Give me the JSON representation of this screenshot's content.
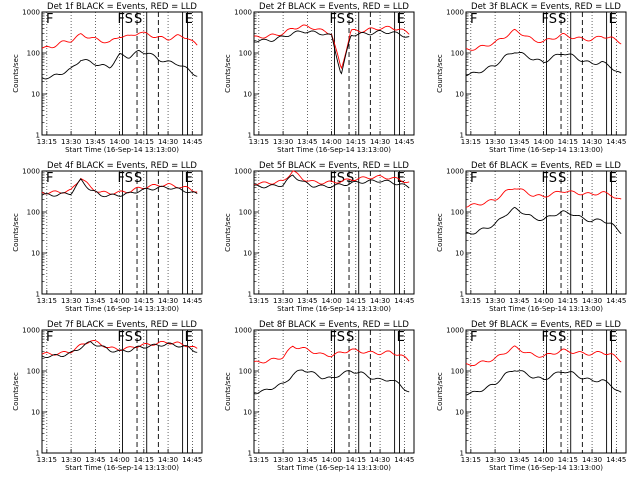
{
  "x_tick_labels": [
    "13:15",
    "13:30",
    "13:45",
    "14:00",
    "14:15",
    "14:30",
    "14:45"
  ],
  "y_tick_labels": [
    "1",
    "10",
    "100",
    "1000"
  ],
  "xlabel": "Start Time (16-Sep-14 13:13:00)",
  "ylabel": "Counts/sec",
  "line_colors": {
    "events": "#000000",
    "lld": "#ff0000"
  },
  "chart_data": [
    {
      "type": "line",
      "title": "Det 1f BLACK = Events, RED = LLD",
      "xlim": [
        13.2,
        14.85
      ],
      "ylim": [
        1,
        1000
      ],
      "yscale": "log",
      "marker_letters": [
        "F",
        "FS",
        "S",
        "E"
      ],
      "x": [
        13.22,
        13.3,
        13.4,
        13.5,
        13.6,
        13.7,
        13.8,
        13.9,
        14.0,
        14.1,
        14.2,
        14.3,
        14.4,
        14.5,
        14.6,
        14.7,
        14.8
      ],
      "series": [
        {
          "values": [
            130,
            140,
            180,
            200,
            280,
            240,
            200,
            180,
            260,
            250,
            320,
            280,
            240,
            220,
            260,
            240,
            150
          ]
        },
        {
          "values": [
            25,
            26,
            32,
            40,
            70,
            60,
            50,
            45,
            90,
            80,
            110,
            100,
            70,
            60,
            55,
            40,
            28
          ]
        }
      ],
      "solid_lines": [
        14.03,
        14.28,
        14.65,
        14.7
      ],
      "dashed_lines": [
        14.18,
        14.4
      ]
    },
    {
      "type": "line",
      "title": "Det 2f BLACK = Events, RED = LLD",
      "xlim": [
        13.2,
        14.85
      ],
      "ylim": [
        1,
        1000
      ],
      "yscale": "log",
      "marker_letters": [
        "",
        "FS",
        "S",
        "E"
      ],
      "x": [
        13.22,
        13.3,
        13.4,
        13.5,
        13.6,
        13.7,
        13.8,
        13.9,
        14.0,
        14.1,
        14.2,
        14.3,
        14.4,
        14.5,
        14.6,
        14.7,
        14.8
      ],
      "series": [
        {
          "values": [
            240,
            250,
            270,
            300,
            400,
            450,
            420,
            350,
            300,
            40,
            350,
            340,
            380,
            400,
            420,
            380,
            300
          ]
        },
        {
          "values": [
            200,
            200,
            210,
            250,
            300,
            340,
            320,
            300,
            260,
            30,
            280,
            290,
            300,
            330,
            320,
            290,
            240
          ]
        }
      ],
      "solid_lines": [
        14.03,
        14.28,
        14.65,
        14.7
      ],
      "dashed_lines": [
        14.18,
        14.4
      ]
    },
    {
      "type": "line",
      "title": "Det 3f BLACK = Events, RED = LLD",
      "xlim": [
        13.2,
        14.85
      ],
      "ylim": [
        1,
        1000
      ],
      "yscale": "log",
      "marker_letters": [
        "F",
        "FS",
        "S",
        "E"
      ],
      "x": [
        13.22,
        13.3,
        13.4,
        13.5,
        13.6,
        13.7,
        13.8,
        13.9,
        14.0,
        14.1,
        14.2,
        14.3,
        14.4,
        14.5,
        14.6,
        14.7,
        14.8
      ],
      "series": [
        {
          "values": [
            120,
            130,
            150,
            180,
            250,
            350,
            280,
            200,
            190,
            230,
            280,
            240,
            220,
            210,
            260,
            230,
            180
          ]
        },
        {
          "values": [
            30,
            32,
            40,
            50,
            80,
            110,
            90,
            70,
            60,
            80,
            100,
            85,
            65,
            55,
            60,
            45,
            30
          ]
        }
      ],
      "solid_lines": [
        14.03,
        14.28,
        14.65,
        14.7
      ],
      "dashed_lines": [
        14.18,
        14.4
      ]
    },
    {
      "type": "line",
      "title": "Det 4f BLACK = Events, RED = LLD",
      "xlim": [
        13.2,
        14.85
      ],
      "ylim": [
        1,
        1000
      ],
      "yscale": "log",
      "marker_letters": [
        "F",
        "FS",
        "S",
        "E"
      ],
      "x": [
        13.22,
        13.3,
        13.4,
        13.5,
        13.6,
        13.7,
        13.8,
        13.9,
        14.0,
        14.1,
        14.2,
        14.3,
        14.4,
        14.5,
        14.6,
        14.7,
        14.8
      ],
      "series": [
        {
          "values": [
            300,
            300,
            310,
            330,
            700,
            400,
            300,
            290,
            300,
            320,
            380,
            420,
            450,
            460,
            420,
            380,
            320
          ]
        },
        {
          "values": [
            260,
            260,
            270,
            290,
            600,
            350,
            260,
            250,
            260,
            280,
            330,
            360,
            390,
            400,
            360,
            320,
            270
          ]
        }
      ],
      "solid_lines": [
        14.03,
        14.28,
        14.65,
        14.7
      ],
      "dashed_lines": [
        14.18,
        14.4
      ]
    },
    {
      "type": "line",
      "title": "Det 5f BLACK = Events, RED = LLD",
      "xlim": [
        13.2,
        14.85
      ],
      "ylim": [
        1,
        1000
      ],
      "yscale": "log",
      "marker_letters": [
        "",
        "FS",
        "S",
        "E"
      ],
      "x": [
        13.22,
        13.3,
        13.4,
        13.5,
        13.6,
        13.7,
        13.8,
        13.9,
        14.0,
        14.1,
        14.2,
        14.3,
        14.4,
        14.5,
        14.6,
        14.7,
        14.8
      ],
      "series": [
        {
          "values": [
            500,
            500,
            520,
            560,
            1000,
            650,
            540,
            520,
            530,
            560,
            620,
            660,
            700,
            720,
            680,
            620,
            520
          ]
        },
        {
          "values": [
            420,
            420,
            430,
            460,
            800,
            540,
            440,
            420,
            430,
            460,
            500,
            540,
            560,
            580,
            540,
            480,
            400
          ]
        }
      ],
      "solid_lines": [
        14.03,
        14.28,
        14.65,
        14.7
      ],
      "dashed_lines": [
        14.18,
        14.4
      ]
    },
    {
      "type": "line",
      "title": "Det 6f BLACK = Events, RED = LLD",
      "xlim": [
        13.2,
        14.85
      ],
      "ylim": [
        1,
        1000
      ],
      "yscale": "log",
      "marker_letters": [
        "F",
        "FS",
        "S",
        "E"
      ],
      "x": [
        13.22,
        13.3,
        13.4,
        13.5,
        13.6,
        13.7,
        13.8,
        13.9,
        14.0,
        14.1,
        14.2,
        14.3,
        14.4,
        14.5,
        14.6,
        14.7,
        14.8
      ],
      "series": [
        {
          "values": [
            140,
            150,
            170,
            200,
            300,
            400,
            320,
            250,
            240,
            280,
            330,
            300,
            280,
            270,
            300,
            260,
            190
          ]
        },
        {
          "values": [
            30,
            32,
            40,
            50,
            85,
            120,
            95,
            70,
            65,
            85,
            100,
            90,
            70,
            60,
            65,
            50,
            32
          ]
        }
      ],
      "solid_lines": [
        14.03,
        14.28,
        14.65,
        14.7
      ],
      "dashed_lines": [
        14.18,
        14.4
      ]
    },
    {
      "type": "line",
      "title": "Det 7f BLACK = Events, RED = LLD",
      "xlim": [
        13.2,
        14.85
      ],
      "ylim": [
        1,
        1000
      ],
      "yscale": "log",
      "marker_letters": [
        "F",
        "FS",
        "S",
        "E"
      ],
      "x": [
        13.22,
        13.3,
        13.4,
        13.5,
        13.6,
        13.7,
        13.8,
        13.9,
        14.0,
        14.1,
        14.2,
        14.3,
        14.4,
        14.5,
        14.6,
        14.7,
        14.8
      ],
      "series": [
        {
          "values": [
            260,
            260,
            270,
            300,
            420,
            560,
            460,
            360,
            340,
            360,
            420,
            440,
            480,
            500,
            470,
            420,
            340
          ]
        },
        {
          "values": [
            230,
            230,
            240,
            270,
            380,
            500,
            410,
            320,
            300,
            320,
            380,
            400,
            430,
            450,
            420,
            380,
            300
          ]
        }
      ],
      "solid_lines": [
        14.03,
        14.28,
        14.65,
        14.7
      ],
      "dashed_lines": [
        14.18,
        14.4
      ]
    },
    {
      "type": "line",
      "title": "Det 8f BLACK = Events, RED = LLD",
      "xlim": [
        13.2,
        14.85
      ],
      "ylim": [
        1,
        1000
      ],
      "yscale": "log",
      "marker_letters": [
        "",
        "FS",
        "S",
        "E"
      ],
      "x": [
        13.22,
        13.3,
        13.4,
        13.5,
        13.6,
        13.7,
        13.8,
        13.9,
        14.0,
        14.1,
        14.2,
        14.3,
        14.4,
        14.5,
        14.6,
        14.7,
        14.8
      ],
      "series": [
        {
          "values": [
            160,
            170,
            190,
            220,
            400,
            360,
            300,
            250,
            240,
            280,
            330,
            300,
            280,
            270,
            290,
            250,
            180
          ]
        },
        {
          "values": [
            30,
            32,
            40,
            48,
            80,
            110,
            90,
            70,
            65,
            85,
            100,
            90,
            70,
            60,
            62,
            48,
            30
          ]
        }
      ],
      "solid_lines": [
        14.03,
        14.28,
        14.65,
        14.7
      ],
      "dashed_lines": [
        14.18,
        14.4
      ]
    },
    {
      "type": "line",
      "title": "Det 9f BLACK = Events, RED = LLD",
      "xlim": [
        13.2,
        14.85
      ],
      "ylim": [
        1,
        1000
      ],
      "yscale": "log",
      "marker_letters": [
        "F",
        "FS",
        "S",
        "E"
      ],
      "x": [
        13.22,
        13.3,
        13.4,
        13.5,
        13.6,
        13.7,
        13.8,
        13.9,
        14.0,
        14.1,
        14.2,
        14.3,
        14.4,
        14.5,
        14.6,
        14.7,
        14.8
      ],
      "series": [
        {
          "values": [
            140,
            150,
            170,
            200,
            280,
            380,
            300,
            240,
            230,
            270,
            320,
            290,
            270,
            260,
            290,
            250,
            180
          ]
        },
        {
          "values": [
            28,
            30,
            38,
            48,
            80,
            110,
            90,
            70,
            62,
            80,
            100,
            88,
            68,
            58,
            60,
            45,
            28
          ]
        }
      ],
      "solid_lines": [
        14.03,
        14.28,
        14.65,
        14.7
      ],
      "dashed_lines": [
        14.18,
        14.4
      ]
    }
  ]
}
